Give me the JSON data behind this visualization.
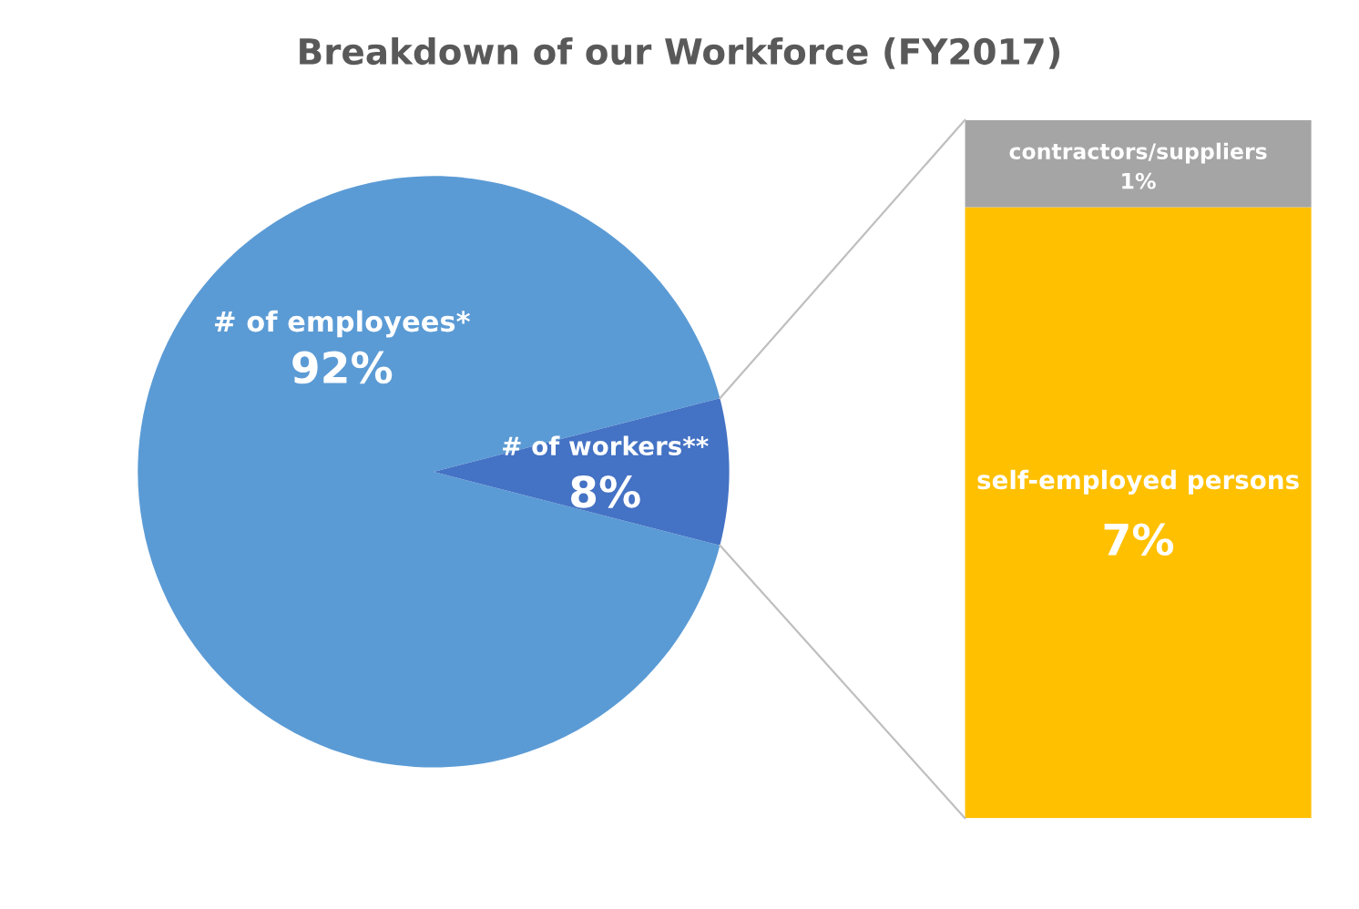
{
  "chart_data": [
    {
      "type": "pie",
      "title": "Breakdown of our Workforce (FY2017)",
      "categories": [
        "# of employees*",
        "# of workers**"
      ],
      "values": [
        92,
        8
      ],
      "colors": [
        "#5b9bd5",
        "#4472c4"
      ],
      "value_labels": [
        "92%",
        "8%"
      ],
      "legend": false
    },
    {
      "type": "bar",
      "stacked": true,
      "categories": [
        null
      ],
      "legend": false,
      "series": [
        {
          "name": "self-employed persons",
          "color": "#ffc000",
          "values": [
            7
          ],
          "value_labels": [
            "7%"
          ]
        },
        {
          "name": "contractors/suppliers",
          "color": "#a5a5a5",
          "values": [
            1
          ],
          "value_labels": [
            "1%"
          ]
        }
      ]
    }
  ]
}
